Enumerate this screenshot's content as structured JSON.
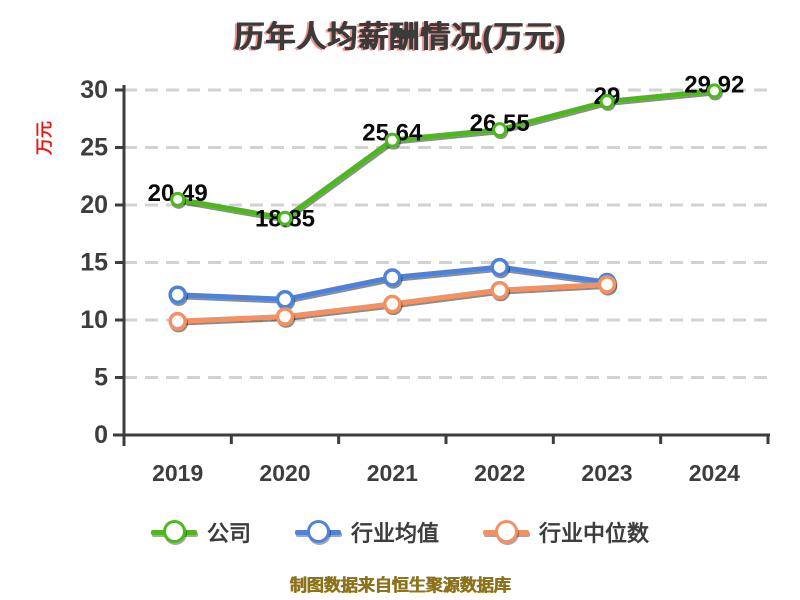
{
  "title": "历年人均薪酬情况(万元)",
  "y_axis_label": "万元",
  "footer": "制图数据来自恒生聚源数据库",
  "chart_data": {
    "type": "line",
    "title": "历年人均薪酬情况(万元)",
    "ylabel": "万元",
    "categories": [
      "2019",
      "2020",
      "2021",
      "2022",
      "2023",
      "2024"
    ],
    "yticks": [
      0,
      5,
      10,
      15,
      20,
      25,
      30
    ],
    "ylim": [
      0,
      30
    ],
    "grid": "horizontal-dashed",
    "legend_position": "bottom",
    "series": [
      {
        "name": "公司",
        "color": "#4cb81b",
        "values": [
          20.49,
          18.85,
          25.64,
          26.55,
          29,
          29.92
        ],
        "labels": [
          "20.49",
          "18.85",
          "25.64",
          "26.55",
          "29",
          "29.92"
        ]
      },
      {
        "name": "行业均值",
        "color": "#4e82db",
        "values": [
          12.2,
          11.8,
          13.7,
          14.6,
          13.3,
          null
        ],
        "labels": null
      },
      {
        "name": "行业中位数",
        "color": "#f59060",
        "values": [
          9.9,
          10.3,
          11.4,
          12.6,
          13.1,
          null
        ],
        "labels": null
      }
    ]
  }
}
